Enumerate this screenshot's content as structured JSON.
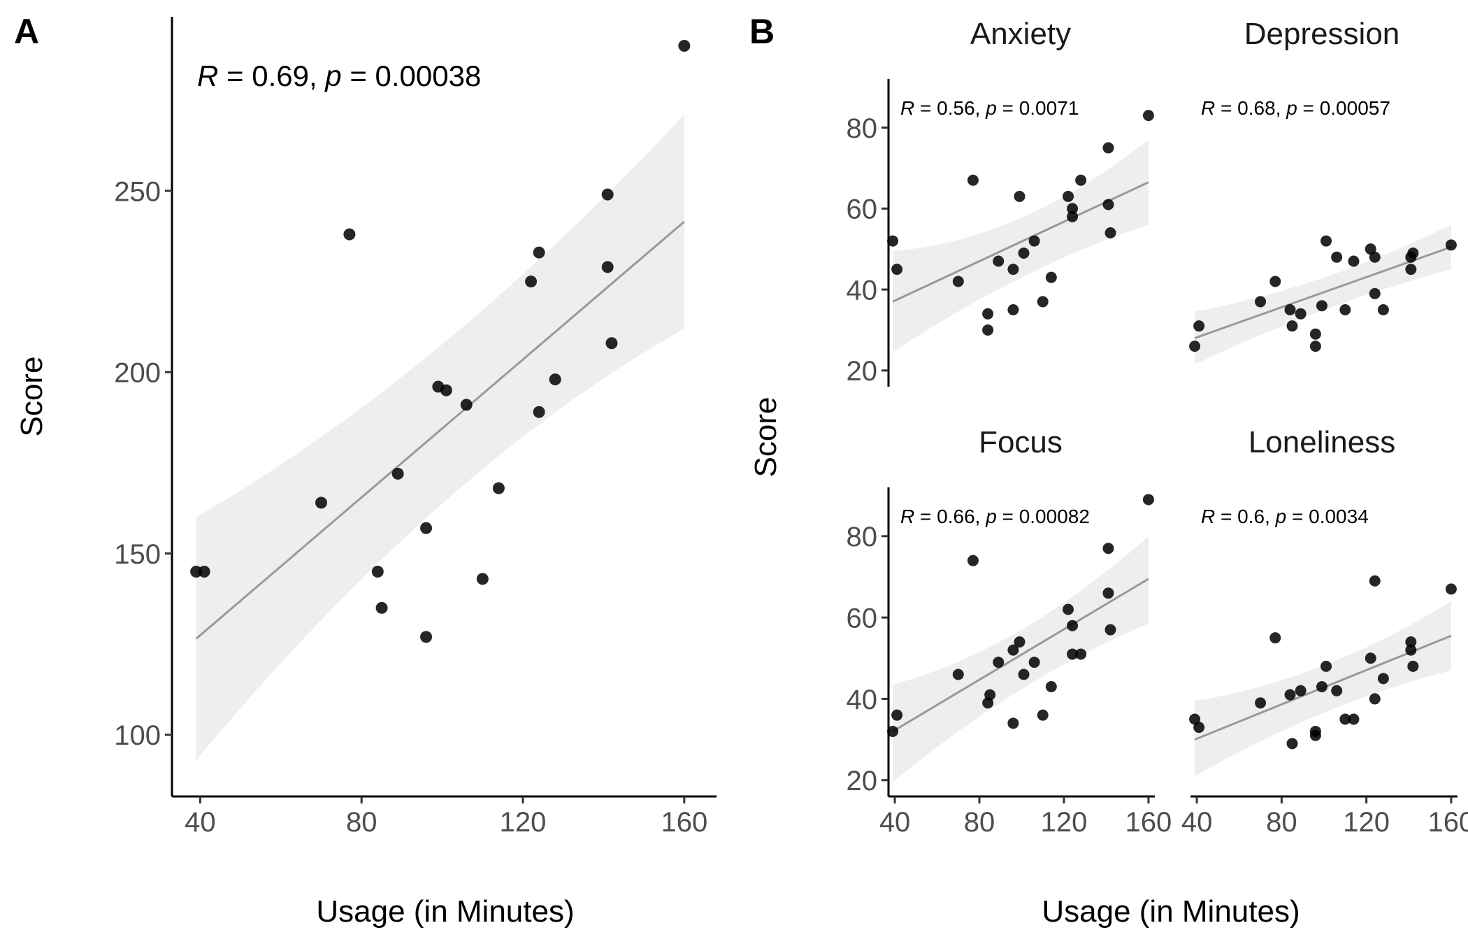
{
  "chart_data": [
    {
      "panel": "A",
      "type": "scatter",
      "xlabel": "Usage (in Minutes)",
      "ylabel": "Score",
      "xlim": [
        33,
        168
      ],
      "ylim": [
        83,
        298
      ],
      "xticks": [
        40,
        80,
        120,
        160
      ],
      "yticks": [
        100,
        150,
        200,
        250
      ],
      "stat": {
        "r_symbol": "R",
        "r_text": " = 0.69, ",
        "p_symbol": "p",
        "p_text": " = 0.00038"
      },
      "fit": {
        "x0": 39,
        "y0": 126.5,
        "x1": 160,
        "y1": 241.5
      },
      "band": {
        "lo0": 93,
        "hi0": 160,
        "lom": 174,
        "him": 199,
        "lo1": 212,
        "hi1": 271
      },
      "points": [
        [
          39,
          145
        ],
        [
          41,
          145
        ],
        [
          70,
          164
        ],
        [
          77,
          238
        ],
        [
          84,
          145
        ],
        [
          85,
          135
        ],
        [
          89,
          172
        ],
        [
          96,
          157
        ],
        [
          96,
          127
        ],
        [
          99,
          196
        ],
        [
          101,
          195
        ],
        [
          106,
          191
        ],
        [
          110,
          143
        ],
        [
          114,
          168
        ],
        [
          122,
          225
        ],
        [
          124,
          233
        ],
        [
          124,
          189
        ],
        [
          128,
          198
        ],
        [
          141,
          249
        ],
        [
          141,
          229
        ],
        [
          142,
          208
        ],
        [
          160,
          290
        ]
      ]
    },
    {
      "panel": "B",
      "type": "scatter",
      "xlabel": "Usage (in Minutes)",
      "ylabel": "Score",
      "xlim": [
        37,
        163
      ],
      "ylim": [
        16,
        92
      ],
      "xticks": [
        40,
        80,
        120,
        160
      ],
      "yticks": [
        20,
        40,
        60,
        80
      ],
      "facets": [
        {
          "title": "Anxiety",
          "stat": {
            "r_symbol": "R",
            "r_text": " = 0.56, ",
            "p_symbol": "p",
            "p_text": " = 0.0071"
          },
          "fit": {
            "x0": 39,
            "y0": 37,
            "x1": 160,
            "y1": 66.5
          },
          "band": {
            "lo0": 24.5,
            "hi0": 49.5,
            "lom": 45.5,
            "him": 52,
            "lo1": 56,
            "hi1": 77
          },
          "points": [
            [
              39,
              52
            ],
            [
              41,
              45
            ],
            [
              70,
              42
            ],
            [
              77,
              67
            ],
            [
              84,
              34
            ],
            [
              84,
              30
            ],
            [
              89,
              47
            ],
            [
              96,
              45
            ],
            [
              96,
              35
            ],
            [
              99,
              63
            ],
            [
              101,
              49
            ],
            [
              106,
              52
            ],
            [
              110,
              37
            ],
            [
              114,
              43
            ],
            [
              122,
              63
            ],
            [
              124,
              60
            ],
            [
              124,
              58
            ],
            [
              128,
              67
            ],
            [
              141,
              75
            ],
            [
              141,
              61
            ],
            [
              142,
              54
            ],
            [
              160,
              83
            ]
          ]
        },
        {
          "title": "Depression",
          "stat": {
            "r_symbol": "R",
            "r_text": " = 0.68, ",
            "p_symbol": "p",
            "p_text": " = 0.00057"
          },
          "fit": {
            "x0": 39,
            "y0": 28,
            "x1": 160,
            "y1": 50.5
          },
          "band": {
            "lo0": 21.5,
            "hi0": 34.5,
            "lom": 36.5,
            "him": 40.5,
            "lo1": 45,
            "hi1": 56
          },
          "points": [
            [
              39,
              26
            ],
            [
              41,
              31
            ],
            [
              70,
              37
            ],
            [
              77,
              42
            ],
            [
              84,
              35
            ],
            [
              85,
              31
            ],
            [
              89,
              34
            ],
            [
              96,
              29
            ],
            [
              96,
              26
            ],
            [
              99,
              36
            ],
            [
              101,
              52
            ],
            [
              106,
              48
            ],
            [
              110,
              35
            ],
            [
              114,
              47
            ],
            [
              122,
              50
            ],
            [
              124,
              48
            ],
            [
              124,
              39
            ],
            [
              128,
              35
            ],
            [
              141,
              48
            ],
            [
              141,
              45
            ],
            [
              142,
              49
            ],
            [
              160,
              51
            ]
          ]
        },
        {
          "title": "Focus",
          "stat": {
            "r_symbol": "R",
            "r_text": " = 0.66, ",
            "p_symbol": "p",
            "p_text": " = 0.00082"
          },
          "fit": {
            "x0": 39,
            "y0": 32,
            "x1": 160,
            "y1": 69.5
          },
          "band": {
            "lo0": 19.5,
            "hi0": 43.5,
            "lom": 45.5,
            "him": 52,
            "lo1": 58.5,
            "hi1": 80
          },
          "points": [
            [
              39,
              32
            ],
            [
              41,
              36
            ],
            [
              70,
              46
            ],
            [
              77,
              74
            ],
            [
              84,
              39
            ],
            [
              85,
              41
            ],
            [
              89,
              49
            ],
            [
              96,
              52
            ],
            [
              96,
              34
            ],
            [
              99,
              54
            ],
            [
              101,
              46
            ],
            [
              106,
              49
            ],
            [
              110,
              36
            ],
            [
              114,
              43
            ],
            [
              122,
              62
            ],
            [
              124,
              58
            ],
            [
              124,
              51
            ],
            [
              128,
              51
            ],
            [
              141,
              77
            ],
            [
              141,
              66
            ],
            [
              142,
              57
            ],
            [
              160,
              89
            ]
          ]
        },
        {
          "title": "Loneliness",
          "stat": {
            "r_symbol": "R",
            "r_text": " = 0.6, ",
            "p_symbol": "p",
            "p_text": " = 0.0034"
          },
          "fit": {
            "x0": 39,
            "y0": 30,
            "x1": 160,
            "y1": 55.5
          },
          "band": {
            "lo0": 21,
            "hi0": 39.5,
            "lom": 39,
            "him": 44.5,
            "lo1": 47,
            "hi1": 64
          },
          "points": [
            [
              39,
              35
            ],
            [
              41,
              33
            ],
            [
              70,
              39
            ],
            [
              77,
              55
            ],
            [
              84,
              41
            ],
            [
              85,
              29
            ],
            [
              89,
              42
            ],
            [
              96,
              32
            ],
            [
              96,
              31
            ],
            [
              99,
              43
            ],
            [
              101,
              48
            ],
            [
              106,
              42
            ],
            [
              110,
              35
            ],
            [
              114,
              35
            ],
            [
              122,
              50
            ],
            [
              124,
              69
            ],
            [
              124,
              40
            ],
            [
              128,
              45
            ],
            [
              141,
              54
            ],
            [
              141,
              52
            ],
            [
              142,
              48
            ],
            [
              160,
              67
            ]
          ]
        }
      ]
    }
  ]
}
